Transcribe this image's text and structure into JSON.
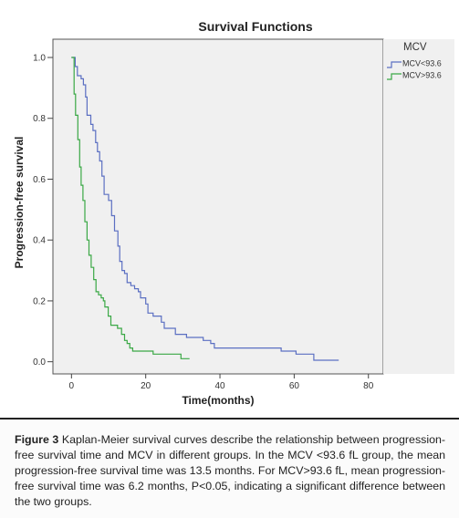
{
  "chart_data": {
    "type": "line",
    "step": true,
    "title": "Survival Functions",
    "xlabel": "Time(months)",
    "ylabel": "Progression-free survival",
    "xlim": [
      -5,
      84
    ],
    "ylim": [
      -0.04,
      1.06
    ],
    "xticks": [
      "0",
      "20",
      "40",
      "60",
      "80"
    ],
    "yticks": [
      "0.0",
      "0.2",
      "0.4",
      "0.6",
      "0.8",
      "1.0"
    ],
    "xtick_values": [
      0,
      20,
      40,
      60,
      80
    ],
    "ytick_values": [
      0.0,
      0.2,
      0.4,
      0.6,
      0.8,
      1.0
    ],
    "grid": false,
    "legend": {
      "title": "MCV",
      "placement": "top-right"
    },
    "series": [
      {
        "name": "MCV<93.6",
        "color": "#5b6fc2",
        "points": [
          [
            0,
            1.0
          ],
          [
            1,
            0.97
          ],
          [
            1.6,
            0.94
          ],
          [
            2.6,
            0.93
          ],
          [
            3.2,
            0.91
          ],
          [
            3.8,
            0.87
          ],
          [
            4.2,
            0.81
          ],
          [
            5.2,
            0.78
          ],
          [
            5.8,
            0.76
          ],
          [
            6.5,
            0.72
          ],
          [
            7,
            0.69
          ],
          [
            7.6,
            0.66
          ],
          [
            8.2,
            0.61
          ],
          [
            8.8,
            0.55
          ],
          [
            10,
            0.53
          ],
          [
            10.8,
            0.48
          ],
          [
            11.6,
            0.43
          ],
          [
            12.5,
            0.38
          ],
          [
            13,
            0.33
          ],
          [
            13.6,
            0.3
          ],
          [
            14.3,
            0.29
          ],
          [
            15,
            0.26
          ],
          [
            16,
            0.25
          ],
          [
            17,
            0.24
          ],
          [
            18,
            0.23
          ],
          [
            18.6,
            0.21
          ],
          [
            20,
            0.19
          ],
          [
            20.6,
            0.16
          ],
          [
            22,
            0.15
          ],
          [
            24.2,
            0.13
          ],
          [
            25,
            0.11
          ],
          [
            28,
            0.09
          ],
          [
            31,
            0.08
          ],
          [
            35.5,
            0.07
          ],
          [
            37.5,
            0.06
          ],
          [
            38.5,
            0.045
          ],
          [
            52,
            0.045
          ],
          [
            56.5,
            0.035
          ],
          [
            60.5,
            0.025
          ],
          [
            65.3,
            0.005
          ],
          [
            72,
            0.005
          ]
        ]
      },
      {
        "name": "MCV>93.6",
        "color": "#3aa845",
        "points": [
          [
            0,
            1.0
          ],
          [
            0.7,
            0.88
          ],
          [
            1.1,
            0.81
          ],
          [
            1.7,
            0.73
          ],
          [
            2.2,
            0.64
          ],
          [
            2.6,
            0.58
          ],
          [
            3.1,
            0.53
          ],
          [
            3.6,
            0.46
          ],
          [
            4.2,
            0.4
          ],
          [
            4.7,
            0.35
          ],
          [
            5.3,
            0.31
          ],
          [
            6,
            0.27
          ],
          [
            6.6,
            0.23
          ],
          [
            7.3,
            0.22
          ],
          [
            8,
            0.21
          ],
          [
            8.6,
            0.2
          ],
          [
            9,
            0.18
          ],
          [
            9.9,
            0.15
          ],
          [
            10.6,
            0.12
          ],
          [
            12.4,
            0.11
          ],
          [
            13.5,
            0.09
          ],
          [
            14.3,
            0.07
          ],
          [
            15,
            0.06
          ],
          [
            15.7,
            0.045
          ],
          [
            16.5,
            0.035
          ],
          [
            18.2,
            0.035
          ],
          [
            22,
            0.025
          ],
          [
            29.5,
            0.01
          ],
          [
            31.8,
            0.01
          ]
        ]
      }
    ]
  },
  "caption": {
    "label": "Figure 3",
    "text": " Kaplan-Meier survival curves describe the relationship between progression-free survival time and MCV in different groups. In the MCV <93.6 fL group, the mean progression-free survival time was 13.5 months. For MCV>93.6 fL, mean progression-free survival time was 6.2 months, P<0.05, indicating a significant difference between the two groups."
  }
}
